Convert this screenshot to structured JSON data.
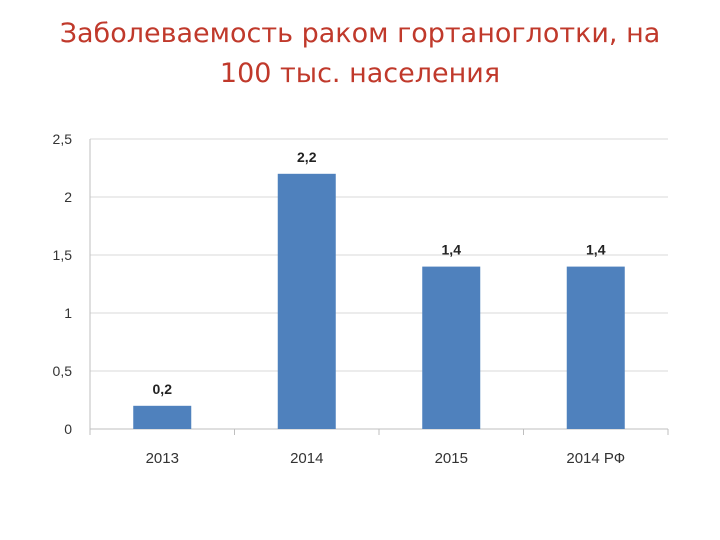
{
  "title": {
    "line1": "Заболеваемость раком гортаноглотки, на",
    "line2": "100 тыс. населения"
  },
  "colors": {
    "title": "#c0392b",
    "bar": "#4f81bd",
    "grid": "#d9d9d9"
  },
  "chart_data": {
    "type": "bar",
    "title": "Заболеваемость раком гортаноглотки, на 100 тыс. населения",
    "categories": [
      "2013",
      "2014",
      "2015",
      "2014 РФ"
    ],
    "values": [
      0.2,
      2.2,
      1.4,
      1.4
    ],
    "data_labels": [
      "0,2",
      "2,2",
      "1,4",
      "1,4"
    ],
    "ylim": [
      0,
      2.5
    ],
    "yticks": [
      0,
      0.5,
      1,
      1.5,
      2,
      2.5
    ],
    "ytick_labels": [
      "0",
      "0,5",
      "1",
      "1,5",
      "2",
      "2,5"
    ],
    "grid": true,
    "legend": false
  }
}
